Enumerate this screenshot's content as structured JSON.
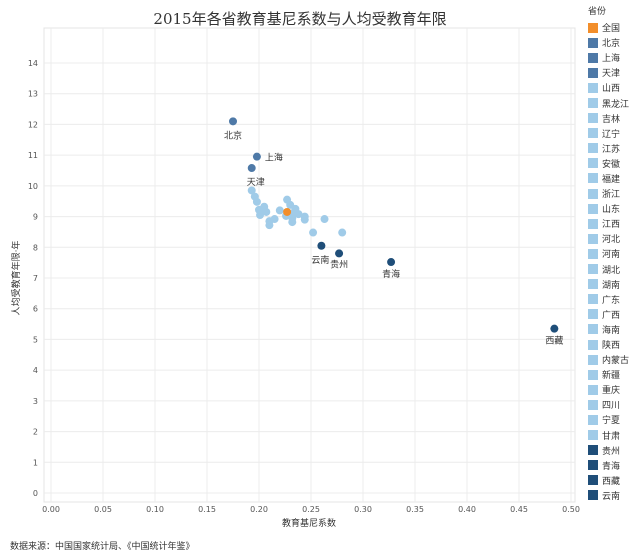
{
  "chart_data": {
    "type": "scatter",
    "title": "2015年各省教育基尼系数与人均受教育年限",
    "xlabel": "教育基尼系数",
    "ylabel": "人均受教育年限·年",
    "xlim": [
      0,
      0.5
    ],
    "ylim": [
      0,
      14
    ],
    "xticks": [
      "0.00",
      "0.05",
      "0.10",
      "0.15",
      "0.20",
      "0.25",
      "0.30",
      "0.35",
      "0.40",
      "0.45",
      "0.50"
    ],
    "yticks": [
      "0",
      "1",
      "2",
      "3",
      "4",
      "5",
      "6",
      "7",
      "8",
      "9",
      "10",
      "11",
      "12",
      "13",
      "14"
    ],
    "grid": true,
    "legend_position": "right",
    "legend_title": "省份",
    "colors": {
      "national": "#f28e2b",
      "tier1": "#4e79a7",
      "light": "#a0cbe8",
      "dark": "#1f4e79"
    },
    "points": [
      {
        "name": "全国",
        "x": 0.227,
        "y": 9.15,
        "group": "national",
        "label": false
      },
      {
        "name": "北京",
        "x": 0.175,
        "y": 12.1,
        "group": "tier1",
        "label": true
      },
      {
        "name": "上海",
        "x": 0.198,
        "y": 10.95,
        "group": "tier1",
        "label": true
      },
      {
        "name": "天津",
        "x": 0.193,
        "y": 10.58,
        "group": "tier1",
        "label": true
      },
      {
        "name": "山西",
        "x": 0.193,
        "y": 9.85,
        "group": "light",
        "label": false
      },
      {
        "name": "黑龙江",
        "x": 0.196,
        "y": 9.65,
        "group": "light",
        "label": false
      },
      {
        "name": "吉林",
        "x": 0.198,
        "y": 9.48,
        "group": "light",
        "label": false
      },
      {
        "name": "辽宁",
        "x": 0.227,
        "y": 9.55,
        "group": "light",
        "label": false
      },
      {
        "name": "江苏",
        "x": 0.23,
        "y": 9.38,
        "group": "light",
        "label": false
      },
      {
        "name": "安徽",
        "x": 0.205,
        "y": 9.32,
        "group": "light",
        "label": false
      },
      {
        "name": "福建",
        "x": 0.2,
        "y": 9.22,
        "group": "light",
        "label": false
      },
      {
        "name": "浙江",
        "x": 0.201,
        "y": 9.05,
        "group": "light",
        "label": false
      },
      {
        "name": "山东",
        "x": 0.207,
        "y": 9.15,
        "group": "light",
        "label": false
      },
      {
        "name": "江西",
        "x": 0.231,
        "y": 9.1,
        "group": "light",
        "label": false
      },
      {
        "name": "河北",
        "x": 0.215,
        "y": 8.92,
        "group": "light",
        "label": false
      },
      {
        "name": "河南",
        "x": 0.21,
        "y": 8.85,
        "group": "light",
        "label": false
      },
      {
        "name": "湖北",
        "x": 0.232,
        "y": 8.95,
        "group": "light",
        "label": false
      },
      {
        "name": "湖南",
        "x": 0.244,
        "y": 9.0,
        "group": "light",
        "label": false
      },
      {
        "name": "广东",
        "x": 0.244,
        "y": 8.9,
        "group": "light",
        "label": false
      },
      {
        "name": "广西",
        "x": 0.232,
        "y": 8.82,
        "group": "light",
        "label": false
      },
      {
        "name": "海南",
        "x": 0.263,
        "y": 8.92,
        "group": "light",
        "label": false
      },
      {
        "name": "陕西",
        "x": 0.21,
        "y": 8.72,
        "group": "light",
        "label": false
      },
      {
        "name": "内蒙古",
        "x": 0.226,
        "y": 9.02,
        "group": "light",
        "label": false
      },
      {
        "name": "新疆",
        "x": 0.252,
        "y": 8.48,
        "group": "light",
        "label": false
      },
      {
        "name": "重庆",
        "x": 0.28,
        "y": 8.48,
        "group": "light",
        "label": false
      },
      {
        "name": "四川",
        "x": 0.238,
        "y": 9.08,
        "group": "light",
        "label": false
      },
      {
        "name": "宁夏",
        "x": 0.22,
        "y": 9.2,
        "group": "light",
        "label": false
      },
      {
        "name": "甘肃",
        "x": 0.235,
        "y": 9.25,
        "group": "light",
        "label": false
      },
      {
        "name": "贵州",
        "x": 0.277,
        "y": 7.8,
        "group": "dark",
        "label": true
      },
      {
        "name": "青海",
        "x": 0.327,
        "y": 7.52,
        "group": "dark",
        "label": true
      },
      {
        "name": "西藏",
        "x": 0.484,
        "y": 5.35,
        "group": "dark",
        "label": true
      },
      {
        "name": "云南",
        "x": 0.26,
        "y": 8.05,
        "group": "dark",
        "label": true
      }
    ]
  },
  "footer": {
    "source": "数据来源：中国国家统计局、《中国统计年鉴》"
  }
}
